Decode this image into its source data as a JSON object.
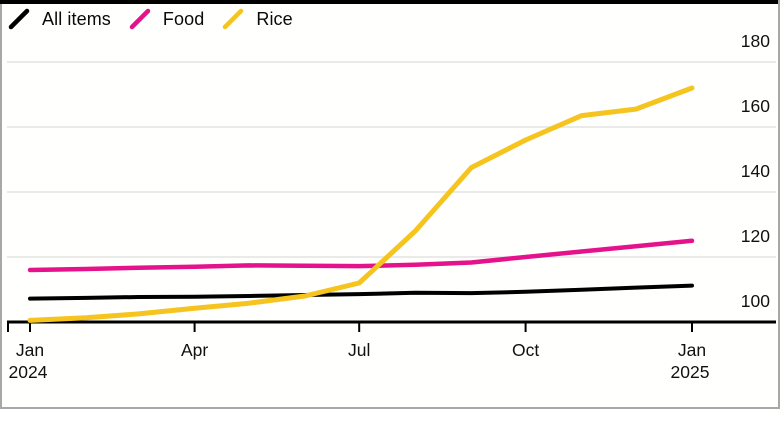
{
  "chart_data": {
    "type": "line",
    "title": "",
    "x": [
      "Jan 2024",
      "Feb 2024",
      "Mar 2024",
      "Apr 2024",
      "May 2024",
      "Jun 2024",
      "Jul 2024",
      "Aug 2024",
      "Sep 2024",
      "Oct 2024",
      "Nov 2024",
      "Dec 2024",
      "Jan 2025"
    ],
    "series": [
      {
        "name": "All items",
        "color": "#000000",
        "values": [
          107.2,
          107.4,
          107.7,
          107.8,
          108.0,
          108.3,
          108.6,
          109.0,
          108.9,
          109.3,
          109.9,
          110.6,
          111.2
        ]
      },
      {
        "name": "Food",
        "color": "#E4128B",
        "values": [
          116.0,
          116.3,
          116.7,
          117.0,
          117.4,
          117.3,
          117.2,
          117.6,
          118.3,
          120.0,
          121.7,
          123.3,
          125.0
        ]
      },
      {
        "name": "Rice",
        "color": "#F5C41E",
        "values": [
          100.5,
          101.3,
          102.5,
          104.2,
          105.8,
          108.0,
          112.0,
          128.0,
          147.5,
          156.0,
          163.5,
          165.5,
          172.0
        ]
      }
    ],
    "ylim": [
      97,
      185
    ],
    "yticks": [
      100,
      120,
      140,
      160,
      180
    ],
    "ytick_labels": [
      "100",
      "120",
      "140",
      "160",
      "180"
    ],
    "xticks": [
      {
        "label": "Jan",
        "sublabel": "2024",
        "month_index": 0
      },
      {
        "label": "Apr",
        "sublabel": "",
        "month_index": 3
      },
      {
        "label": "Jul",
        "sublabel": "",
        "month_index": 6
      },
      {
        "label": "Oct",
        "sublabel": "",
        "month_index": 9
      },
      {
        "label": "Jan",
        "sublabel": "2025",
        "month_index": 12
      }
    ],
    "grid": "horizontal",
    "legend_position": "top-left"
  },
  "legend": {
    "items": [
      {
        "label": "All items",
        "color": "#000000"
      },
      {
        "label": "Food",
        "color": "#E4128B"
      },
      {
        "label": "Rice",
        "color": "#F5C41E"
      }
    ]
  },
  "colors": {
    "grid": "#E3E3E0",
    "axis": "#000000",
    "background": "#FFFFFF",
    "frame_border": "#A8A8A6",
    "top_rule": "#000000"
  }
}
